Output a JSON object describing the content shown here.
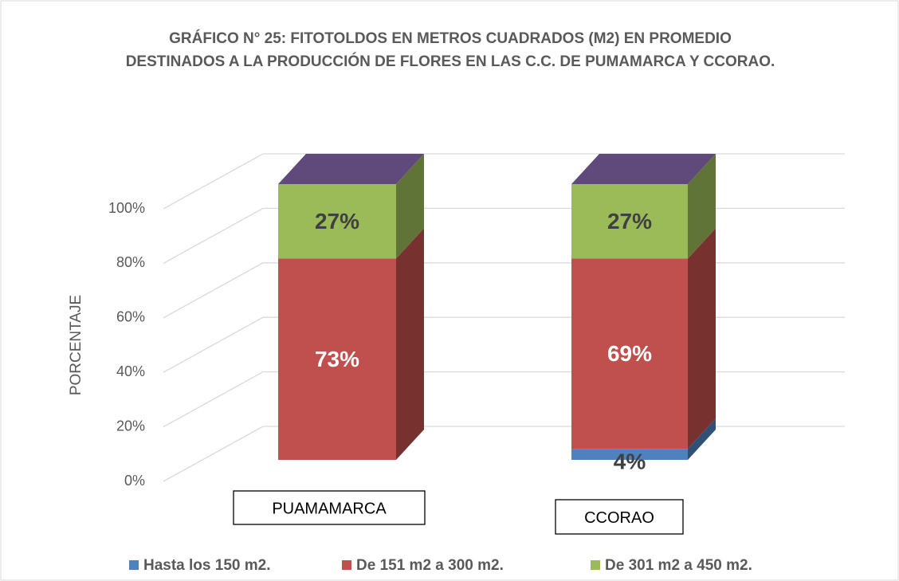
{
  "chart_data": {
    "type": "bar3d_stacked",
    "title": "GRÁFICO N° 25: FITOTOLDOS EN METROS CUADRADOS (M2) EN PROMEDIO DESTINADOS A LA PRODUCCIÓN DE FLORES EN LAS C.C. DE PUMAMARCA Y CCORAO.",
    "ylabel": "PORCENTAJE",
    "categories": [
      "PUAMAMARCA",
      "CCORAO"
    ],
    "series": [
      {
        "name": "Hasta los 150 m2.",
        "color": "#4f81bd",
        "values": [
          0,
          4
        ],
        "value_labels": [
          null,
          "4%"
        ]
      },
      {
        "name": "De 151 m2 a 300 m2.",
        "color": "#c0504d",
        "values": [
          73,
          69
        ],
        "value_labels": [
          "73%",
          "69%"
        ]
      },
      {
        "name": "De 301 m2 a 450 m2.",
        "color": "#9bbb59",
        "values": [
          27,
          27
        ],
        "value_labels": [
          "27%",
          "27%"
        ]
      }
    ],
    "top_color": "#604a7b",
    "ylim": [
      0,
      100
    ],
    "yticks": [
      {
        "value": 0,
        "label": "0%"
      },
      {
        "value": 20,
        "label": "20%"
      },
      {
        "value": 40,
        "label": "40%"
      },
      {
        "value": 60,
        "label": "60%"
      },
      {
        "value": 80,
        "label": "80%"
      },
      {
        "value": 100,
        "label": "100%"
      }
    ],
    "grid": true
  }
}
